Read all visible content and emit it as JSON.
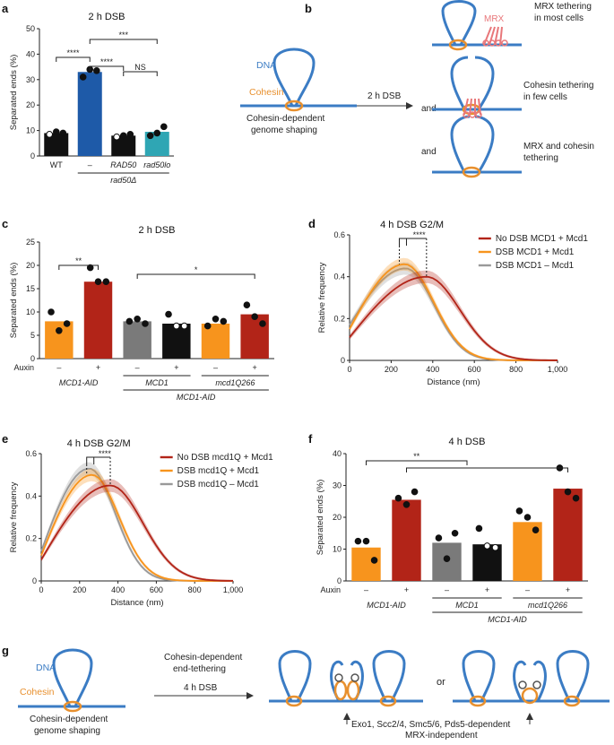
{
  "colors": {
    "dna": "#3b7cc4",
    "cohesin": "#e8902e",
    "mrx": "#e8777a",
    "label_dna": "#3b7cc4",
    "black": "#111111",
    "blue": "#1e5aa8",
    "teal": "#2fa6b4",
    "red": "#b22418",
    "orange": "#f7941d",
    "gray": "#7a7a7a"
  },
  "panel_labels": {
    "a": "a",
    "b": "b",
    "c": "c",
    "d": "d",
    "e": "e",
    "f": "f",
    "g": "g"
  },
  "chart_data": [
    {
      "id": "a",
      "type": "bar",
      "title": "2 h DSB",
      "ylabel": "Separated ends (%)",
      "ylim": [
        0,
        50
      ],
      "yticks": [
        0,
        10,
        20,
        30,
        40,
        50
      ],
      "categories": [
        "WT",
        "–",
        "RAD50",
        "rad50lo"
      ],
      "category_italic": [
        false,
        false,
        true,
        true
      ],
      "group_label": "rad50Δ",
      "values": [
        9,
        33,
        8,
        9.5
      ],
      "points": [
        [
          8.5,
          9.5,
          9
        ],
        [
          31,
          34,
          33.5
        ],
        [
          7.5,
          8,
          8.5
        ],
        [
          8,
          9,
          11.5
        ]
      ],
      "colors": [
        "#111111",
        "#1e5aa8",
        "#111111",
        "#2fa6b4"
      ],
      "significance": [
        {
          "from": 0,
          "to": 1,
          "label": "****"
        },
        {
          "from": 1,
          "to": 3,
          "label": "***"
        },
        {
          "from": 1,
          "to": 2,
          "label": "****"
        },
        {
          "from": 2,
          "to": 3,
          "label": "NS"
        }
      ]
    },
    {
      "id": "c",
      "type": "bar",
      "title": "2 h DSB",
      "ylabel": "Separated ends (%)",
      "ylim": [
        0,
        25
      ],
      "yticks": [
        0,
        5,
        10,
        15,
        20,
        25
      ],
      "auxin_label": "Auxin",
      "auxin": [
        "–",
        "+",
        "–",
        "+",
        "–",
        "+"
      ],
      "values": [
        8,
        16.5,
        8,
        7.5,
        7.5,
        9.5
      ],
      "points": [
        [
          10,
          6,
          7.5
        ],
        [
          19.5,
          16.5,
          16.5
        ],
        [
          8,
          8.5,
          7.5
        ],
        [
          9.5,
          7,
          7
        ],
        [
          7,
          8.5,
          8
        ],
        [
          11.5,
          9,
          7.5
        ]
      ],
      "colors": [
        "#f7941d",
        "#b22418",
        "#7a7a7a",
        "#111111",
        "#f7941d",
        "#b22418"
      ],
      "groups": [
        {
          "label": "MCD1-AID",
          "span": [
            0,
            1
          ]
        },
        {
          "label": "MCD1",
          "span": [
            2,
            3
          ]
        },
        {
          "label": "mcd1Q266",
          "span": [
            4,
            5
          ]
        }
      ],
      "super_group": {
        "label": "MCD1-AID",
        "span": [
          2,
          5
        ]
      },
      "significance": [
        {
          "from": 0,
          "to": 1,
          "label": "**"
        },
        {
          "from": 2,
          "to": 5,
          "label": "*"
        }
      ]
    },
    {
      "id": "d",
      "type": "line",
      "title": "4 h DSB G2/M",
      "xlabel": "Distance (nm)",
      "ylabel": "Relative frequency",
      "xlim": [
        0,
        1000
      ],
      "ylim": [
        0,
        0.6
      ],
      "xticks": [
        0,
        200,
        400,
        600,
        800,
        1000
      ],
      "xtick_labels": [
        "0",
        "200",
        "400",
        "600",
        "800",
        "1,000"
      ],
      "yticks": [
        0,
        0.2,
        0.4,
        0.6
      ],
      "ytick_labels": [
        "0",
        "0.2",
        "0.4",
        "0.6"
      ],
      "significance": "****",
      "series": [
        {
          "name": "No DSB MCD1 + Mcd1",
          "color": "#b22418",
          "peak_x": 370,
          "peak_y": 0.4,
          "sigma": 160,
          "start_y": 0.11
        },
        {
          "name": "DSB MCD1 + Mcd1",
          "color": "#f7941d",
          "peak_x": 265,
          "peak_y": 0.46,
          "sigma": 140,
          "start_y": 0.15
        },
        {
          "name": "DSB MCD1 – Mcd1",
          "color": "#999999",
          "peak_x": 270,
          "peak_y": 0.44,
          "sigma": 135,
          "start_y": 0.17
        }
      ]
    },
    {
      "id": "e",
      "type": "line",
      "title": "4 h DSB G2/M",
      "xlabel": "Distance (nm)",
      "ylabel": "Relative frequency",
      "xlim": [
        0,
        1000
      ],
      "ylim": [
        0,
        0.6
      ],
      "xticks": [
        0,
        200,
        400,
        600,
        800,
        1000
      ],
      "xtick_labels": [
        "0",
        "200",
        "400",
        "600",
        "800",
        "1,000"
      ],
      "yticks": [
        0,
        0.2,
        0.4,
        0.6
      ],
      "ytick_labels": [
        "0",
        "0.2",
        "0.4",
        "0.6"
      ],
      "significance": "****",
      "series": [
        {
          "name": "No DSB mcd1Q + Mcd1",
          "color": "#b22418",
          "peak_x": 360,
          "peak_y": 0.45,
          "sigma": 170,
          "start_y": 0.1
        },
        {
          "name": "DSB mcd1Q + Mcd1",
          "color": "#f7941d",
          "peak_x": 265,
          "peak_y": 0.5,
          "sigma": 140,
          "start_y": 0.12
        },
        {
          "name": "DSB mcd1Q – Mcd1",
          "color": "#999999",
          "peak_x": 250,
          "peak_y": 0.53,
          "sigma": 135,
          "start_y": 0.14
        }
      ]
    },
    {
      "id": "f",
      "type": "bar",
      "title": "4 h DSB",
      "ylabel": "Separated ends (%)",
      "ylim": [
        0,
        40
      ],
      "yticks": [
        0,
        10,
        20,
        30,
        40
      ],
      "auxin_label": "Auxin",
      "auxin": [
        "–",
        "+",
        "–",
        "+",
        "–",
        "+"
      ],
      "values": [
        10.5,
        25.5,
        12,
        11.5,
        18.5,
        29
      ],
      "points": [
        [
          12.5,
          12.5,
          6.5
        ],
        [
          26,
          24,
          28
        ],
        [
          13.5,
          7,
          15
        ],
        [
          16.5,
          11,
          10.5
        ],
        [
          22,
          20,
          16
        ],
        [
          35.5,
          28,
          26
        ]
      ],
      "colors": [
        "#f7941d",
        "#b22418",
        "#7a7a7a",
        "#111111",
        "#f7941d",
        "#b22418"
      ],
      "groups": [
        {
          "label": "MCD1-AID",
          "span": [
            0,
            1
          ]
        },
        {
          "label": "MCD1",
          "span": [
            2,
            3
          ]
        },
        {
          "label": "mcd1Q266",
          "span": [
            4,
            5
          ]
        }
      ],
      "super_group": {
        "label": "MCD1-AID",
        "span": [
          2,
          5
        ]
      },
      "significance": [
        {
          "from": 0,
          "to": 2.5,
          "label": "**"
        },
        {
          "from": 1,
          "to": 5,
          "label": ""
        }
      ]
    }
  ],
  "diagram_b": {
    "dna": "DNA",
    "cohesin": "Cohesin",
    "caption_line1": "Cohesin-dependent",
    "caption_line2": "genome shaping",
    "arrow": "2 h DSB",
    "and1": "and",
    "and2": "and",
    "mrx": "MRX",
    "outcome1": [
      "MRX tethering",
      "in most cells"
    ],
    "outcome2": [
      "Cohesin tethering",
      "in few cells"
    ],
    "outcome3": [
      "MRX and cohesin",
      "tethering"
    ]
  },
  "diagram_g": {
    "dna": "DNA",
    "cohesin": "Cohesin",
    "caption_line1": "Cohesin-dependent",
    "caption_line2": "genome shaping",
    "arrow_top1": "Cohesin-dependent",
    "arrow_top2": "end-tethering",
    "arrow": "4 h DSB",
    "or": "or",
    "bottom1": "Exo1, Scc2/4, Smc5/6, Pds5-dependent",
    "bottom2": "MRX-independent"
  }
}
